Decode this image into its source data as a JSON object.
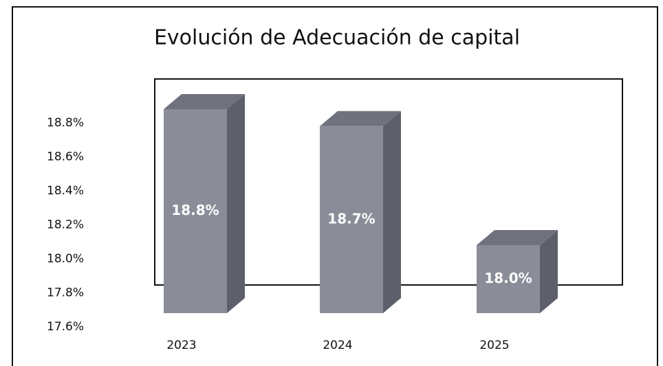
{
  "chart_data": {
    "type": "bar3d",
    "title": "Evolución de Adecuación de capital",
    "categories": [
      "2023",
      "2024",
      "2025"
    ],
    "values": [
      18.8,
      18.7,
      18.0
    ],
    "value_labels": [
      "18.8%",
      "18.7%",
      "18.0%"
    ],
    "color": "#8a8d98",
    "ylim": [
      17.6,
      19.0
    ],
    "yticks": [
      {
        "value": 17.6,
        "label": "17.6%"
      },
      {
        "value": 17.8,
        "label": "17.8%"
      },
      {
        "value": 18.0,
        "label": "18.0%"
      },
      {
        "value": 18.2,
        "label": "18.2%"
      },
      {
        "value": 18.4,
        "label": "18.4%"
      },
      {
        "value": 18.6,
        "label": "18.6%"
      },
      {
        "value": 18.8,
        "label": "18.8%"
      }
    ]
  }
}
